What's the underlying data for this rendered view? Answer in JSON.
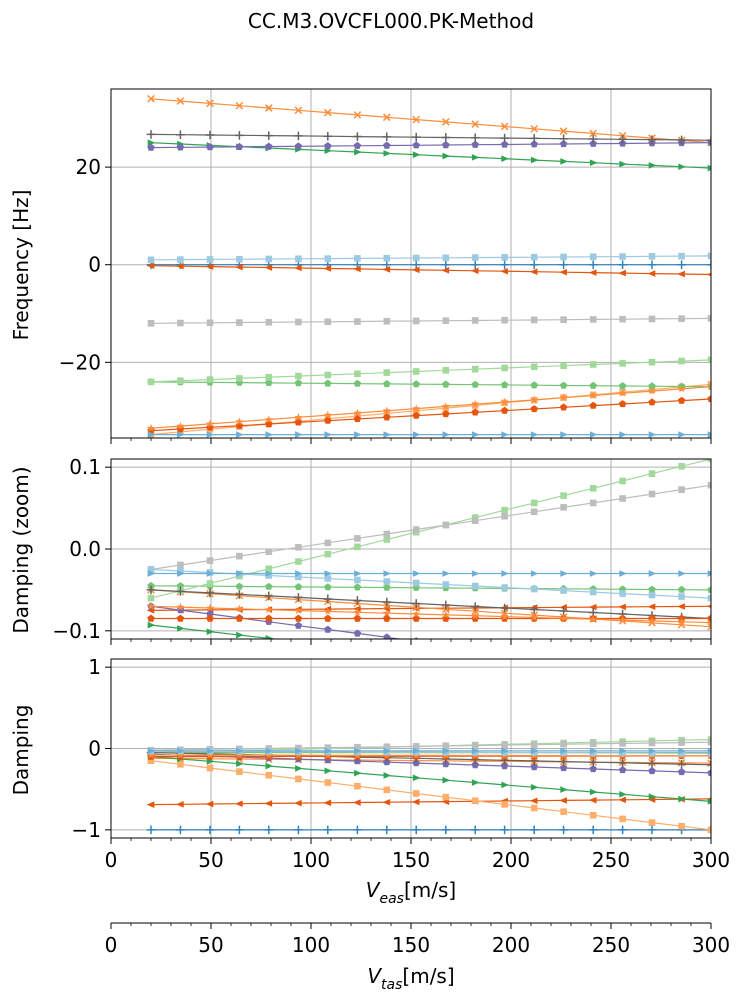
{
  "chart_data": {
    "type": "line",
    "title": "CC.M3.OVCFL000.PK-Method",
    "grid": true,
    "panels": [
      {
        "id": "frequency",
        "ylabel": "Frequency [Hz]",
        "ylim": [
          -35.5,
          36
        ],
        "yticks": [
          -20,
          0,
          20
        ],
        "ytick_labels": [
          "−20",
          "0",
          "20"
        ]
      },
      {
        "id": "damping_zoom",
        "ylabel": "Damping (zoom)",
        "ylim": [
          -0.11,
          0.11
        ],
        "yticks": [
          -0.1,
          0.0,
          0.1
        ],
        "ytick_labels": [
          "−0.1",
          "0.0",
          "0.1"
        ]
      },
      {
        "id": "damping",
        "ylabel": "Damping",
        "ylim": [
          -1.1,
          1.1
        ],
        "yticks": [
          -1,
          0,
          1
        ],
        "ytick_labels": [
          "−1",
          "0",
          "1"
        ]
      }
    ],
    "x_axis_eas": {
      "label_main": "V",
      "label_sub": "eas",
      "label_unit": "[m/s]",
      "xlim": [
        0,
        300
      ],
      "ticks": [
        0,
        50,
        100,
        150,
        200,
        250,
        300
      ],
      "tick_labels": [
        "0",
        "50",
        "100",
        "150",
        "200",
        "250",
        "300"
      ]
    },
    "x_axis_tas": {
      "label_main": "V",
      "label_sub": "tas",
      "label_unit": "[m/s]",
      "xlim": [
        0,
        300
      ],
      "ticks": [
        0,
        50,
        100,
        150,
        200,
        250,
        300
      ],
      "tick_labels": [
        "0",
        "50",
        "100",
        "150",
        "200",
        "250",
        "300"
      ]
    },
    "x": [
      20,
      34.7,
      49.5,
      64.2,
      78.9,
      93.7,
      108.4,
      123.2,
      137.9,
      152.6,
      167.4,
      182.1,
      196.8,
      211.6,
      226.3,
      241.1,
      255.8,
      270.5,
      285.3,
      300
    ],
    "series": [
      {
        "color": "#3182bd",
        "marker": "+",
        "freq": [
          0,
          0
        ],
        "zoom": null,
        "damp": [
          -1,
          -1
        ]
      },
      {
        "color": "#e6550d",
        "marker": "<",
        "freq": [
          -0.2,
          -2.0
        ],
        "zoom": [
          -0.075,
          -0.07
        ],
        "damp": [
          -0.69,
          -0.62
        ]
      },
      {
        "color": "#fd8d3c",
        "marker": "x",
        "freq": [
          34,
          25
        ],
        "zoom": [
          -0.05,
          -0.095
        ],
        "damp": [
          -0.12,
          -0.18
        ]
      },
      {
        "color": "#fdae6b",
        "marker": "s",
        "freq": [
          -34.8,
          -24.5
        ],
        "zoom": null,
        "damp": [
          -0.15,
          -1.0
        ]
      },
      {
        "color": "#31a354",
        "marker": ">",
        "freq": [
          25,
          19.8
        ],
        "zoom": [
          -0.093,
          -0.17
        ],
        "damp": [
          -0.1,
          -0.65
        ]
      },
      {
        "color": "#74c476",
        "marker": "p",
        "freq": [
          -24,
          -25
        ],
        "zoom": [
          -0.045,
          -0.05
        ],
        "damp": [
          -0.05,
          -0.05
        ]
      },
      {
        "color": "#a1d99b",
        "marker": "s",
        "freq": [
          -24,
          -19.5
        ],
        "zoom": [
          -0.06,
          0.11
        ],
        "damp": [
          -0.05,
          0.11
        ]
      },
      {
        "color": "#bdbdbd",
        "marker": "s",
        "freq": [
          -12,
          -11
        ],
        "zoom": [
          -0.025,
          0.078
        ],
        "damp": [
          -0.02,
          0.078
        ]
      },
      {
        "color": "#756bb1",
        "marker": "p",
        "freq": [
          24,
          25
        ],
        "zoom": [
          -0.07,
          -0.16
        ],
        "damp": [
          -0.07,
          -0.3
        ]
      },
      {
        "color": "#636363",
        "marker": "+",
        "freq": [
          26.7,
          25.5
        ],
        "zoom": [
          -0.05,
          -0.085
        ],
        "damp": [
          -0.05,
          -0.2
        ]
      },
      {
        "color": "#e6550d",
        "marker": "p",
        "freq": [
          -34,
          -27.5
        ],
        "zoom": [
          -0.085,
          -0.085
        ],
        "damp": [
          -0.1,
          -0.09
        ]
      },
      {
        "color": "#fd8d3c",
        "marker": "*",
        "freq": [
          -33.5,
          -25
        ],
        "zoom": [
          -0.07,
          -0.09
        ],
        "damp": [
          -0.08,
          -0.09
        ]
      },
      {
        "color": "#9ecae1",
        "marker": "s",
        "freq": [
          1.0,
          1.8
        ],
        "zoom": [
          -0.025,
          -0.06
        ],
        "damp": [
          -0.03,
          -0.06
        ]
      },
      {
        "color": "#6baed6",
        "marker": ">",
        "freq": [
          -34.8,
          -34.8
        ],
        "zoom": [
          -0.03,
          -0.03
        ],
        "damp": [
          -0.03,
          -0.03
        ]
      }
    ]
  }
}
